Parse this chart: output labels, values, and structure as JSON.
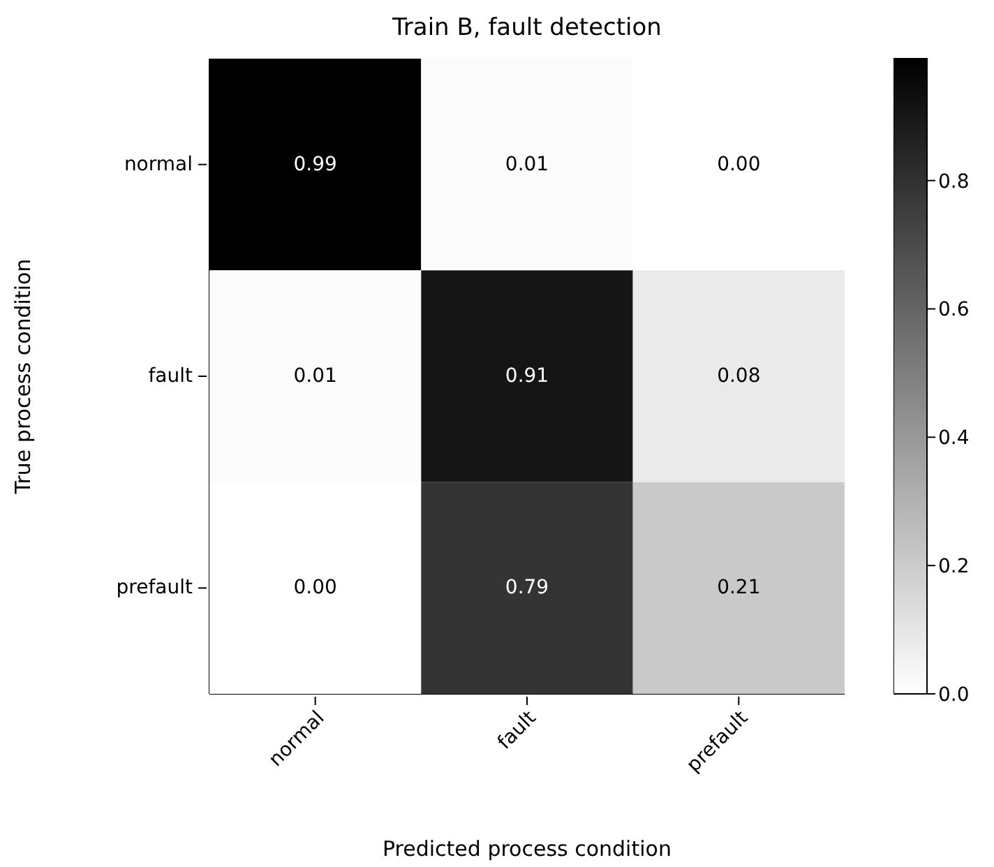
{
  "chart_data": {
    "type": "heatmap",
    "title": "Train B, fault detection",
    "xlabel": "Predicted process condition",
    "ylabel": "True process condition",
    "categories": [
      "normal",
      "fault",
      "prefault"
    ],
    "y_categories": [
      "normal",
      "fault",
      "prefault"
    ],
    "cells": [
      [
        0.99,
        0.01,
        0.0
      ],
      [
        0.01,
        0.91,
        0.08
      ],
      [
        0.0,
        0.79,
        0.21
      ]
    ],
    "cell_labels": [
      [
        "0.99",
        "0.01",
        "0.00"
      ],
      [
        "0.01",
        "0.91",
        "0.08"
      ],
      [
        "0.00",
        "0.79",
        "0.21"
      ]
    ],
    "clim": [
      0,
      0.99
    ],
    "cticks": [
      {
        "value": 0,
        "label": "0.0"
      },
      {
        "value": 0.2,
        "label": "0.2"
      },
      {
        "value": 0.4,
        "label": "0.4"
      },
      {
        "value": 0.6,
        "label": "0.6"
      },
      {
        "value": 0.8,
        "label": "0.8"
      }
    ]
  }
}
